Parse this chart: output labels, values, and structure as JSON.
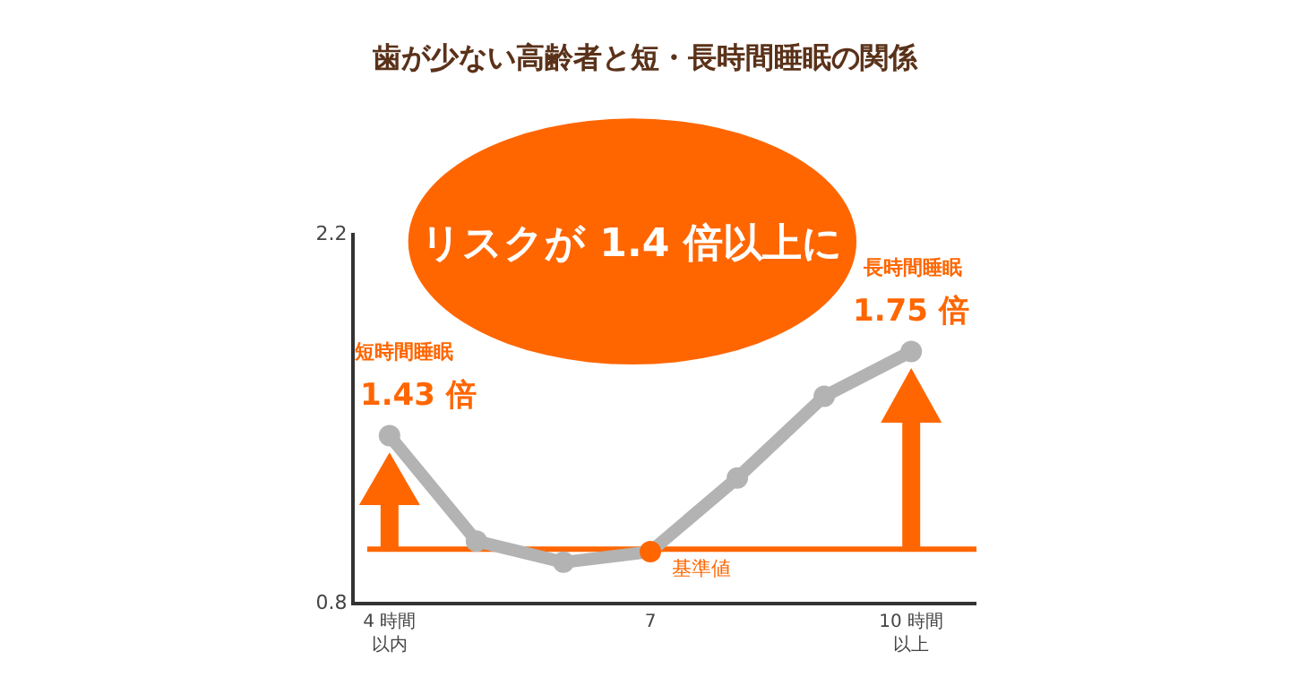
{
  "chart_data": {
    "type": "line",
    "title": "歯が少ない高齢者と短・長時間睡眠の関係",
    "categories": [
      "4 時間以内",
      null,
      null,
      "7",
      null,
      null,
      "10 時間以上"
    ],
    "series": [
      {
        "color": "#b3b3b3",
        "colors": [
          "#b3b3b3",
          "#b3b3b3",
          "#b3b3b3",
          "#ff6600",
          "#b3b3b3",
          "#b3b3b3",
          "#b3b3b3"
        ],
        "values": [
          1.43,
          1.03,
          0.95,
          0.99,
          1.27,
          1.58,
          1.75
        ],
        "value_labels": [
          "1.43 倍",
          null,
          null,
          null,
          null,
          null,
          "1.75 倍"
        ]
      }
    ],
    "ylim": [
      0.8,
      2.2
    ],
    "yticks": [
      0.8,
      2.2
    ],
    "grid": false,
    "legend": false,
    "marker": "circle",
    "line_style": "solid",
    "ref_lines": [
      {
        "axis": "y",
        "value": 1.0,
        "label": "基準値",
        "color": "#ff6600"
      }
    ],
    "annotations": [
      "短時間睡眠",
      "長時間睡眠",
      "リスクが 1.4 倍以上に"
    ]
  }
}
